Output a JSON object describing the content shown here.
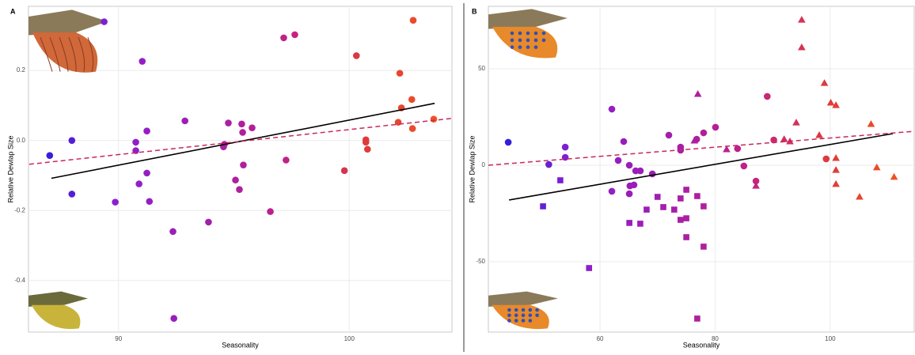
{
  "chart_data": [
    {
      "type": "scatter",
      "panel_label": "A",
      "x_label": "Seasonality",
      "y_label": "Relative Dewlap Size",
      "xlim": [
        86.1,
        104.45
      ],
      "ylim": [
        -0.547,
        0.383
      ],
      "xticks": [
        90,
        100
      ],
      "yticks": [
        -0.4,
        -0.2,
        {
          "value": 0,
          "label": "0.0"
        },
        0.2
      ],
      "grid": true,
      "color_scale": [
        "#1c1ce0",
        "#8a1fd0",
        "#a01eb0",
        "#c0208a",
        "#e03a3a",
        "#f05a1e"
      ],
      "series": [
        {
          "shape": "circle",
          "x": [
            87.02,
            87.98,
            87.98,
            89.38,
            89.86,
            91.03,
            90.75,
            90.75,
            90.89,
            91.23,
            91.23,
            91.34,
            92.36,
            92.4,
            92.88,
            93.9,
            94.55,
            94.59,
            94.76,
            95.07,
            95.24,
            95.34,
            95.38,
            95.41,
            95.79,
            96.58,
            97.16,
            97.26,
            97.64,
            99.79,
            100.31,
            100.72,
            100.72,
            100.79,
            102.12,
            102.19,
            102.26,
            102.71,
            102.74,
            102.77,
            103.66
          ],
          "y": [
            -0.043,
            0.0,
            -0.153,
            0.339,
            -0.176,
            0.226,
            -0.005,
            -0.029,
            -0.124,
            0.027,
            -0.093,
            -0.174,
            -0.26,
            -0.508,
            0.056,
            -0.233,
            -0.018,
            -0.011,
            0.05,
            -0.113,
            -0.14,
            0.047,
            0.023,
            -0.07,
            0.036,
            -0.203,
            0.293,
            -0.056,
            0.302,
            -0.086,
            0.242,
            0.002,
            -0.005,
            -0.025,
            0.052,
            0.192,
            0.093,
            0.117,
            0.034,
            0.343,
            0.061
          ]
        }
      ],
      "lines": [
        {
          "color": "#000000",
          "dashed": false,
          "x": [
            87.09,
            103.7
          ],
          "y": [
            -0.108,
            0.106
          ]
        },
        {
          "color": "#c8285a",
          "dashed": true,
          "x": [
            86.13,
            104.45
          ],
          "y": [
            -0.068,
            0.063
          ]
        }
      ]
    },
    {
      "type": "scatter",
      "panel_label": "B",
      "x_label": "Seasonality",
      "y_label": "Relative Dewlap Size",
      "xlim": [
        40.6,
        114.6
      ],
      "ylim": [
        -86.5,
        82.4
      ],
      "xticks": [
        60,
        80,
        100
      ],
      "yticks": [
        -50,
        0,
        50
      ],
      "grid": true,
      "color_scale": [
        "#1c1ce0",
        "#8a1fd0",
        "#a01eb0",
        "#c0208a",
        "#e03a3a",
        "#f05a1e"
      ],
      "series": [
        {
          "shape": "circle",
          "x": [
            44.05,
            51.1,
            53.96,
            53.96,
            62.06,
            62.06,
            63.16,
            64.12,
            65.09,
            65.09,
            65.2,
            65.9,
            66.2,
            67.0,
            69.1,
            71.96,
            74.0,
            74.0,
            76.8,
            78.0,
            80.07,
            83.9,
            85.0,
            87.1,
            89.06,
            90.2,
            99.3
          ],
          "y": [
            11.9,
            0.4,
            9.4,
            4.1,
            29.1,
            -13.5,
            2.5,
            12.3,
            0,
            -14.8,
            -10.7,
            -10.2,
            -2.9,
            -2.9,
            -4.5,
            15.6,
            9.4,
            7.8,
            13.5,
            16.8,
            19.7,
            8.6,
            -0.4,
            -8.2,
            35.7,
            13.1,
            3.3
          ]
        },
        {
          "shape": "square",
          "x": [
            50.1,
            53.1,
            58.1,
            65.1,
            67.0,
            68.1,
            70.0,
            71.0,
            72.9,
            74.0,
            74.0,
            75.0,
            75.0,
            75.0,
            76.9,
            76.9,
            78.0,
            78.0
          ],
          "y": [
            -21.3,
            -7.8,
            -53.3,
            -29.9,
            -30.3,
            -23.0,
            -16.4,
            -21.7,
            -23.0,
            -17.2,
            -28.3,
            -12.7,
            -27.5,
            -37.3,
            -16.0,
            -79.5,
            -21.3,
            -42.2
          ]
        },
        {
          "shape": "triangle",
          "x": [
            77.0,
            76.4,
            82.0,
            87.1,
            92.0,
            93.0,
            94.1,
            95.05,
            95.05,
            98.1,
            99.0,
            100.1,
            101.0,
            101.0,
            101.0,
            101.0,
            105.1,
            107.1,
            108.1,
            111.1
          ],
          "y": [
            36.9,
            12.7,
            8.2,
            -10.7,
            13.5,
            12.3,
            22.1,
            75.4,
            61.1,
            15.6,
            42.6,
            32.4,
            31.1,
            3.7,
            -2.5,
            -9.8,
            -16.4,
            21.3,
            -1.2,
            -6.1
          ]
        }
      ],
      "lines": [
        {
          "color": "#000000",
          "dashed": false,
          "x": [
            44.2,
            110.9
          ],
          "y": [
            -18.0,
            16.4
          ]
        },
        {
          "color": "#c8285a",
          "dashed": true,
          "x": [
            40.6,
            114.6
          ],
          "y": [
            0,
            17.6
          ]
        }
      ]
    }
  ]
}
